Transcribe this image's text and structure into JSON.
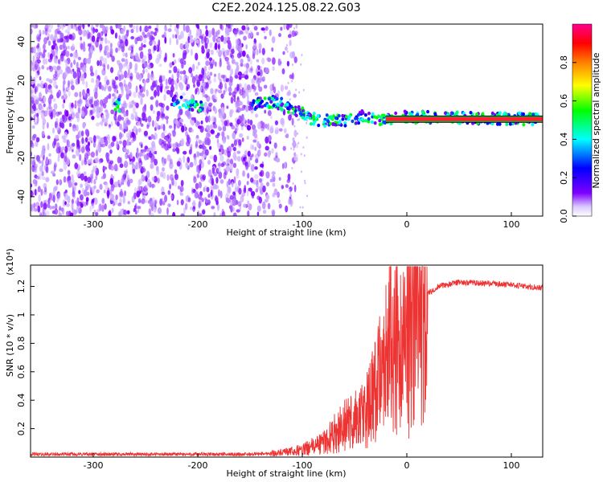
{
  "figure": {
    "title": "C2E2.2024.125.08.22.G03"
  },
  "chart_data": [
    {
      "type": "heatmap",
      "xlabel": "Height of straight line (km)",
      "ylabel": "Frequency (Hz)",
      "xlim": [
        -360,
        130
      ],
      "ylim": [
        -50,
        49
      ],
      "xticks": [
        -300,
        -200,
        -100,
        0,
        100
      ],
      "yticks": [
        -40,
        -20,
        0,
        20,
        40
      ],
      "colorbar": {
        "label": "Normalized spectral amplitude",
        "range": [
          0.0,
          1.0
        ],
        "ticks": [
          0.0,
          0.2,
          0.4,
          0.6,
          0.8
        ],
        "colormap": [
          "#ffffff",
          "#7f00ff",
          "#0000ff",
          "#00ffff",
          "#00ff00",
          "#ffff00",
          "#ff7f00",
          "#ff0000",
          "#ff00a0"
        ]
      },
      "features": {
        "noise_region_x": [
          -360,
          -115
        ],
        "signal_track": {
          "x": [
            -280,
            -222,
            -210,
            -200,
            -145,
            -130,
            -115,
            -100,
            -90,
            -75,
            -55,
            -40,
            -30,
            -20,
            -5,
            5,
            130
          ],
          "y": [
            7,
            9,
            8,
            7,
            8,
            9,
            7,
            3,
            0,
            -1,
            -1,
            2,
            0,
            0,
            1,
            1,
            0
          ]
        },
        "constant_line_x": [
          -20,
          130
        ],
        "constant_line_y": 0
      }
    },
    {
      "type": "line",
      "xlabel": "Height of straight line (km)",
      "ylabel": "SNR (10 * v/v)",
      "multiplier_label": "(x10⁴)",
      "xlim": [
        -360,
        130
      ],
      "ylim": [
        0,
        1.35
      ],
      "xticks": [
        -300,
        -200,
        -100,
        0,
        100
      ],
      "yticks": [
        0.2,
        0.4,
        0.6,
        0.8,
        1.0,
        1.2
      ],
      "series": [
        {
          "color": "#ee3333",
          "envelope": {
            "x": [
              -360,
              -300,
              -200,
              -150,
              -120,
              -100,
              -80,
              -60,
              -40,
              -30,
              -20,
              -10,
              0,
              10,
              15,
              20,
              30,
              50,
              80,
              100,
              130
            ],
            "y": [
              0.02,
              0.02,
              0.02,
              0.02,
              0.03,
              0.05,
              0.1,
              0.22,
              0.3,
              0.45,
              0.75,
              0.95,
              0.9,
              1.05,
              1.1,
              1.15,
              1.2,
              1.23,
              1.22,
              1.21,
              1.19
            ]
          }
        }
      ]
    }
  ]
}
